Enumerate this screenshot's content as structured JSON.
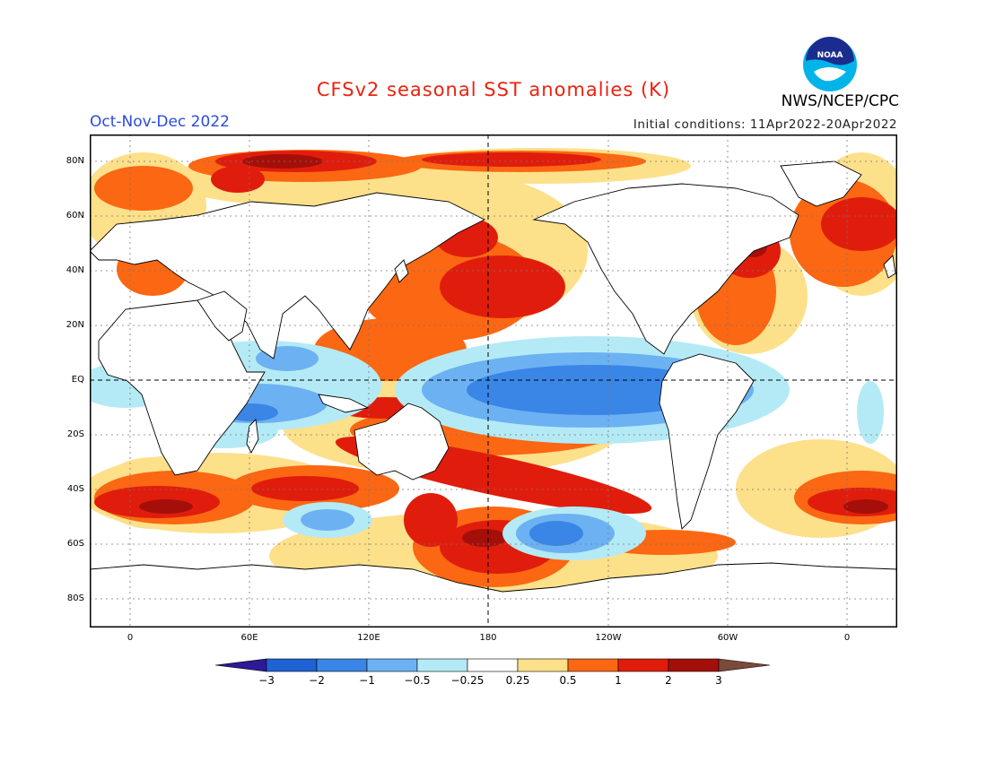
{
  "header": {
    "title": "CFSv2 seasonal SST anomalies (K)",
    "season": "Oct-Nov-Dec 2022",
    "initial_conditions": "Initial conditions: 11Apr2022-20Apr2022",
    "agency": "NWS/NCEP/CPC",
    "logo_text": "NOAA"
  },
  "map": {
    "lat_labels": [
      "80N",
      "60N",
      "40N",
      "20N",
      "EQ",
      "20S",
      "40S",
      "60S",
      "80S"
    ],
    "lon_labels": [
      "0",
      "60E",
      "120E",
      "180",
      "120W",
      "60W",
      "0"
    ]
  },
  "colorbar": {
    "labels": [
      "−3",
      "−2",
      "−1",
      "−0.5",
      "−0.25",
      "0.25",
      "0.5",
      "1",
      "2",
      "3"
    ],
    "colors": [
      "#2d1a96",
      "#1e62d4",
      "#3a86e6",
      "#6cb2f2",
      "#b4eaf5",
      "#ffffff",
      "#fde08a",
      "#fb6712",
      "#e01d0c",
      "#a50f0a",
      "#7a4a3a"
    ]
  }
}
